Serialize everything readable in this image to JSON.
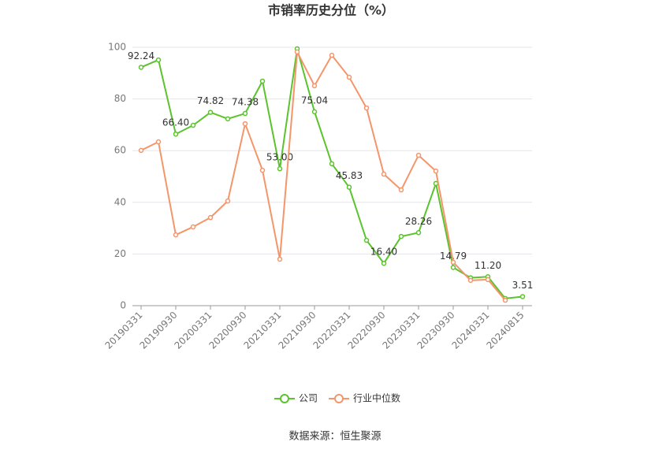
{
  "chart_data": {
    "type": "line",
    "title": "市销率历史分位（%）",
    "categories": [
      "20190331",
      null,
      "20190930",
      null,
      "20200331",
      null,
      "20200930",
      null,
      "20210331",
      null,
      "20210930",
      null,
      "20220331",
      null,
      "20220930",
      null,
      "20230331",
      null,
      "20230930",
      null,
      "20240331",
      null,
      "20240815"
    ],
    "series": [
      {
        "name": "公司",
        "color": "#5ac32d",
        "values": [
          92.24,
          95.1,
          66.4,
          69.8,
          74.82,
          72.3,
          74.38,
          86.9,
          53.0,
          99.4,
          75.04,
          54.9,
          45.83,
          25.3,
          16.4,
          26.8,
          28.26,
          47.3,
          14.79,
          10.8,
          11.2,
          2.8,
          3.51
        ],
        "value_labels": [
          "92.24",
          null,
          "66.40",
          null,
          "74.82",
          null,
          "74.38",
          null,
          "53.00",
          null,
          "75.04",
          null,
          "45.83",
          null,
          "16.40",
          null,
          "28.26",
          null,
          "14.79",
          null,
          "11.20",
          null,
          "3.51"
        ]
      },
      {
        "name": "行业中位数",
        "color": "#f4956a",
        "values": [
          60.1,
          63.4,
          27.4,
          30.5,
          34.1,
          40.5,
          70.4,
          52.4,
          18.0,
          98.2,
          85.1,
          96.9,
          88.4,
          76.5,
          50.9,
          44.8,
          58.2,
          52.1,
          16.8,
          9.8,
          10.1,
          2.1,
          null
        ]
      }
    ],
    "ylim": [
      0,
      100
    ],
    "yticks": [
      0,
      20,
      40,
      60,
      80,
      100
    ],
    "grid": true,
    "legend": "bottom",
    "source": "数据来源：恒生聚源"
  }
}
